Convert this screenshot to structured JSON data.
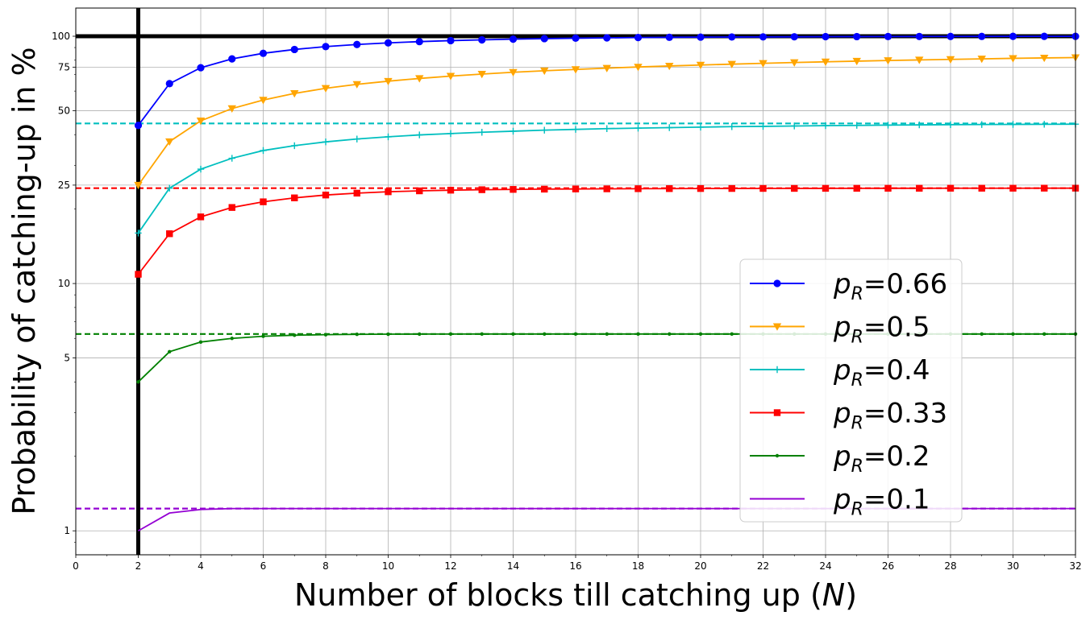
{
  "chart_data": {
    "type": "line",
    "xlabel": "Number of blocks till catching up (N)",
    "xlabel_plain": "Number of blocks till catching up (",
    "xlabel_var": "N",
    "xlabel_close": ")",
    "ylabel": "Probability of catching-up in %",
    "xlim": [
      0,
      32
    ],
    "ylim": [
      0.8,
      130
    ],
    "y_scale": "log",
    "grid": true,
    "legend_position": "lower-right",
    "x_ticks": [
      0,
      2,
      4,
      6,
      8,
      10,
      12,
      14,
      16,
      18,
      20,
      22,
      24,
      26,
      28,
      30,
      32
    ],
    "y_ticks": [
      1,
      5,
      10,
      25,
      50,
      75,
      100
    ],
    "reference_lines": {
      "horizontal_solid": 100,
      "vertical_solid": 2
    },
    "series": [
      {
        "name": "p_R=0.66",
        "legend_prefix": "p",
        "legend_sub": "R",
        "legend_value": "=0.66",
        "color": "#0000ff",
        "marker": "circle",
        "asymptote": null,
        "x": [
          2,
          3,
          4,
          5,
          6,
          7,
          8,
          9,
          10,
          11,
          12,
          13,
          14,
          15,
          16,
          17,
          18,
          19,
          20,
          21,
          22,
          23,
          24,
          25,
          26,
          27,
          28,
          29,
          30,
          31,
          32
        ],
        "values": [
          43.6,
          64.3,
          74.6,
          81.0,
          85.3,
          88.4,
          90.8,
          92.6,
          94.0,
          95.1,
          96.0,
          96.7,
          97.3,
          97.8,
          98.2,
          98.5,
          98.8,
          99.0,
          99.2,
          99.3,
          99.4,
          99.5,
          99.6,
          99.67,
          99.73,
          99.78,
          99.82,
          99.85,
          99.88,
          99.9,
          99.92
        ]
      },
      {
        "name": "p_R=0.5",
        "legend_prefix": "p",
        "legend_sub": "R",
        "legend_value": "=0.5",
        "color": "#ffa500",
        "marker": "triangle-down",
        "asymptote": null,
        "x": [
          2,
          3,
          4,
          5,
          6,
          7,
          8,
          9,
          10,
          11,
          12,
          13,
          14,
          15,
          16,
          17,
          18,
          19,
          20,
          21,
          22,
          23,
          24,
          25,
          26,
          27,
          28,
          29,
          30,
          31,
          32
        ],
        "values": [
          25.0,
          37.5,
          45.5,
          51.0,
          55.2,
          58.7,
          61.6,
          63.9,
          65.8,
          67.5,
          69.0,
          70.3,
          71.5,
          72.5,
          73.4,
          74.3,
          75.1,
          75.8,
          76.5,
          77.1,
          77.7,
          78.3,
          78.8,
          79.3,
          79.8,
          80.2,
          80.6,
          81.0,
          81.4,
          81.7,
          82.0
        ]
      },
      {
        "name": "p_R=0.4",
        "legend_prefix": "p",
        "legend_sub": "R",
        "legend_value": "=0.4",
        "color": "#00bfbf",
        "marker": "plus",
        "asymptote": 44.4,
        "x": [
          2,
          3,
          4,
          5,
          6,
          7,
          8,
          9,
          10,
          11,
          12,
          13,
          14,
          15,
          16,
          17,
          18,
          19,
          20,
          21,
          22,
          23,
          24,
          25,
          26,
          27,
          28,
          29,
          30,
          31,
          32
        ],
        "values": [
          16.0,
          24.3,
          29.0,
          32.1,
          34.5,
          36.1,
          37.4,
          38.4,
          39.2,
          39.9,
          40.4,
          40.9,
          41.3,
          41.7,
          42.0,
          42.3,
          42.5,
          42.7,
          42.9,
          43.1,
          43.2,
          43.35,
          43.5,
          43.6,
          43.7,
          43.8,
          43.9,
          43.95,
          44.0,
          44.05,
          44.1
        ]
      },
      {
        "name": "p_R=0.33",
        "legend_prefix": "p",
        "legend_sub": "R",
        "legend_value": "=0.33",
        "color": "#ff0000",
        "marker": "square",
        "asymptote": 24.3,
        "x": [
          2,
          3,
          4,
          5,
          6,
          7,
          8,
          9,
          10,
          11,
          12,
          13,
          14,
          15,
          16,
          17,
          18,
          19,
          20,
          21,
          22,
          23,
          24,
          25,
          26,
          27,
          28,
          29,
          30,
          31,
          32
        ],
        "values": [
          10.9,
          15.9,
          18.6,
          20.3,
          21.4,
          22.2,
          22.8,
          23.2,
          23.5,
          23.7,
          23.85,
          23.95,
          24.02,
          24.08,
          24.12,
          24.15,
          24.18,
          24.2,
          24.22,
          24.23,
          24.24,
          24.25,
          24.26,
          24.27,
          24.28,
          24.28,
          24.29,
          24.29,
          24.29,
          24.3,
          24.3
        ]
      },
      {
        "name": "p_R=0.2",
        "legend_prefix": "p",
        "legend_sub": "R",
        "legend_value": "=0.2",
        "color": "#008000",
        "marker": "point",
        "asymptote": 6.25,
        "x": [
          2,
          3,
          4,
          5,
          6,
          7,
          8,
          9,
          10,
          11,
          12,
          13,
          14,
          15,
          16,
          17,
          18,
          19,
          20,
          21,
          22,
          23,
          24,
          25,
          26,
          27,
          28,
          29,
          30,
          31,
          32
        ],
        "values": [
          4.0,
          5.3,
          5.8,
          6.0,
          6.12,
          6.18,
          6.21,
          6.23,
          6.24,
          6.245,
          6.248,
          6.249,
          6.25,
          6.25,
          6.25,
          6.25,
          6.25,
          6.25,
          6.25,
          6.25,
          6.25,
          6.25,
          6.25,
          6.25,
          6.25,
          6.25,
          6.25,
          6.25,
          6.25,
          6.25,
          6.25
        ]
      },
      {
        "name": "p_R=0.1",
        "legend_prefix": "p",
        "legend_sub": "R",
        "legend_value": "=0.1",
        "color": "#9400d3",
        "marker": "none",
        "asymptote": 1.23,
        "x": [
          2,
          3,
          4,
          5,
          6,
          7,
          8,
          9,
          10,
          11,
          12,
          13,
          14,
          15,
          16,
          17,
          18,
          19,
          20,
          21,
          22,
          23,
          24,
          25,
          26,
          27,
          28,
          29,
          30,
          31,
          32
        ],
        "values": [
          1.0,
          1.18,
          1.22,
          1.23,
          1.23,
          1.23,
          1.23,
          1.23,
          1.23,
          1.23,
          1.23,
          1.23,
          1.23,
          1.23,
          1.23,
          1.23,
          1.23,
          1.23,
          1.23,
          1.23,
          1.23,
          1.23,
          1.23,
          1.23,
          1.23,
          1.23,
          1.23,
          1.23,
          1.23,
          1.23,
          1.23
        ]
      }
    ]
  }
}
